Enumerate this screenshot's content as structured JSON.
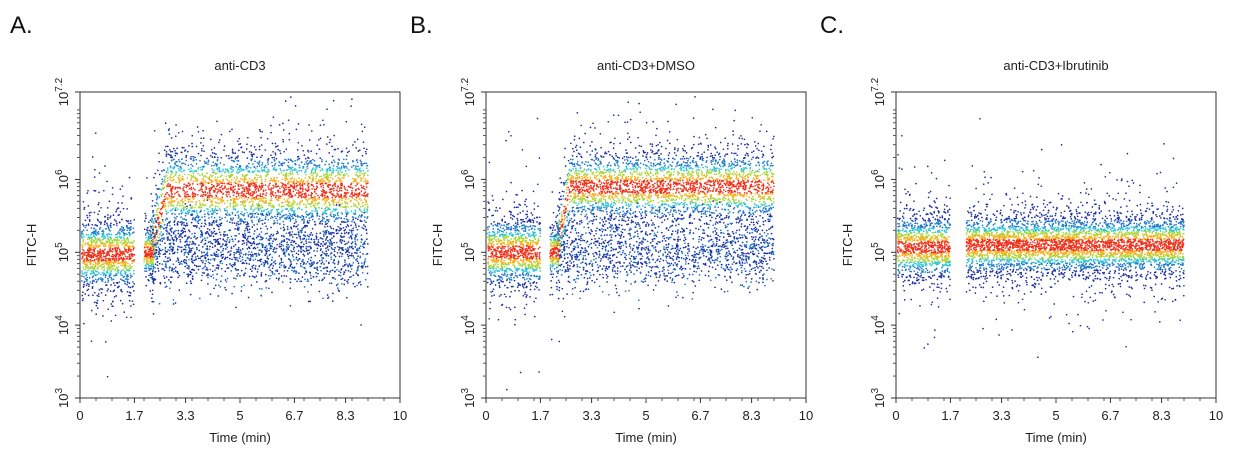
{
  "chart_data": [
    {
      "type": "scatter",
      "panel_label": "A.",
      "title": "anti-CD3",
      "xlabel": "Time (min)",
      "ylabel": "FITC-H",
      "xlim": [
        0,
        10
      ],
      "ylim_log10": [
        3,
        7.2
      ],
      "x_ticks": [
        "0",
        "1.7",
        "3.3",
        "5",
        "6.7",
        "8.3",
        "10"
      ],
      "x_tick_values": [
        0,
        1.7,
        3.3,
        5,
        6.7,
        8.3,
        10
      ],
      "y_ticks": [
        {
          "base": "10",
          "exp": "3",
          "value": 3
        },
        {
          "base": "10",
          "exp": "4",
          "value": 4
        },
        {
          "base": "10",
          "exp": "5",
          "value": 5
        },
        {
          "base": "10",
          "exp": "6",
          "value": 6
        },
        {
          "base": "10",
          "exp": "7.2",
          "value": 7.2
        }
      ],
      "segments": [
        {
          "x_start": 0.05,
          "x_end": 1.7,
          "center_log10": 4.97,
          "spread_log10": 0.16
        },
        {
          "x_start": 2.2,
          "x_end": 9.0,
          "center_log10": 5.85,
          "spread_log10": 0.18,
          "low_center_log10": 5.0,
          "rise_from_log10": 5.0,
          "rise_to_x": 2.7
        },
        {
          "x_start": 2.0,
          "x_end": 2.3,
          "center_log10": 5.0,
          "spread_log10": 0.12
        }
      ]
    },
    {
      "type": "scatter",
      "panel_label": "B.",
      "title": "anti-CD3+DMSO",
      "xlabel": "Time (min)",
      "ylabel": "FITC-H",
      "xlim": [
        0,
        10
      ],
      "ylim_log10": [
        3,
        7.2
      ],
      "x_ticks": [
        "0",
        "1.7",
        "3.3",
        "5",
        "6.7",
        "8.3",
        "10"
      ],
      "x_tick_values": [
        0,
        1.7,
        3.3,
        5,
        6.7,
        8.3,
        10
      ],
      "y_ticks": [
        {
          "base": "10",
          "exp": "3",
          "value": 3
        },
        {
          "base": "10",
          "exp": "4",
          "value": 4
        },
        {
          "base": "10",
          "exp": "5",
          "value": 5
        },
        {
          "base": "10",
          "exp": "6",
          "value": 6
        },
        {
          "base": "10",
          "exp": "7.2",
          "value": 7.2
        }
      ],
      "segments": [
        {
          "x_start": 0.05,
          "x_end": 1.7,
          "center_log10": 5.0,
          "spread_log10": 0.16
        },
        {
          "x_start": 2.2,
          "x_end": 9.0,
          "center_log10": 5.9,
          "spread_log10": 0.16,
          "low_center_log10": 5.0,
          "rise_from_log10": 5.0,
          "rise_to_x": 2.6
        },
        {
          "x_start": 2.0,
          "x_end": 2.3,
          "center_log10": 5.0,
          "spread_log10": 0.12
        }
      ]
    },
    {
      "type": "scatter",
      "panel_label": "C.",
      "title": "anti-CD3+Ibrutinib",
      "xlabel": "Time (min)",
      "ylabel": "FITC-H",
      "xlim": [
        0,
        10
      ],
      "ylim_log10": [
        3,
        7.2
      ],
      "x_ticks": [
        "0",
        "1.7",
        "3.3",
        "5",
        "6.7",
        "8.3",
        "10"
      ],
      "x_tick_values": [
        0,
        1.7,
        3.3,
        5,
        6.7,
        8.3,
        10
      ],
      "y_ticks": [
        {
          "base": "10",
          "exp": "3",
          "value": 3
        },
        {
          "base": "10",
          "exp": "4",
          "value": 4
        },
        {
          "base": "10",
          "exp": "5",
          "value": 5
        },
        {
          "base": "10",
          "exp": "6",
          "value": 6
        },
        {
          "base": "10",
          "exp": "7.2",
          "value": 7.2
        }
      ],
      "segments": [
        {
          "x_start": 0.05,
          "x_end": 1.7,
          "center_log10": 5.07,
          "spread_log10": 0.15
        },
        {
          "x_start": 2.2,
          "x_end": 9.0,
          "center_log10": 5.1,
          "spread_log10": 0.14,
          "low_center_log10": 5.1,
          "rise_from_log10": 5.1,
          "rise_to_x": 2.2
        }
      ]
    }
  ]
}
